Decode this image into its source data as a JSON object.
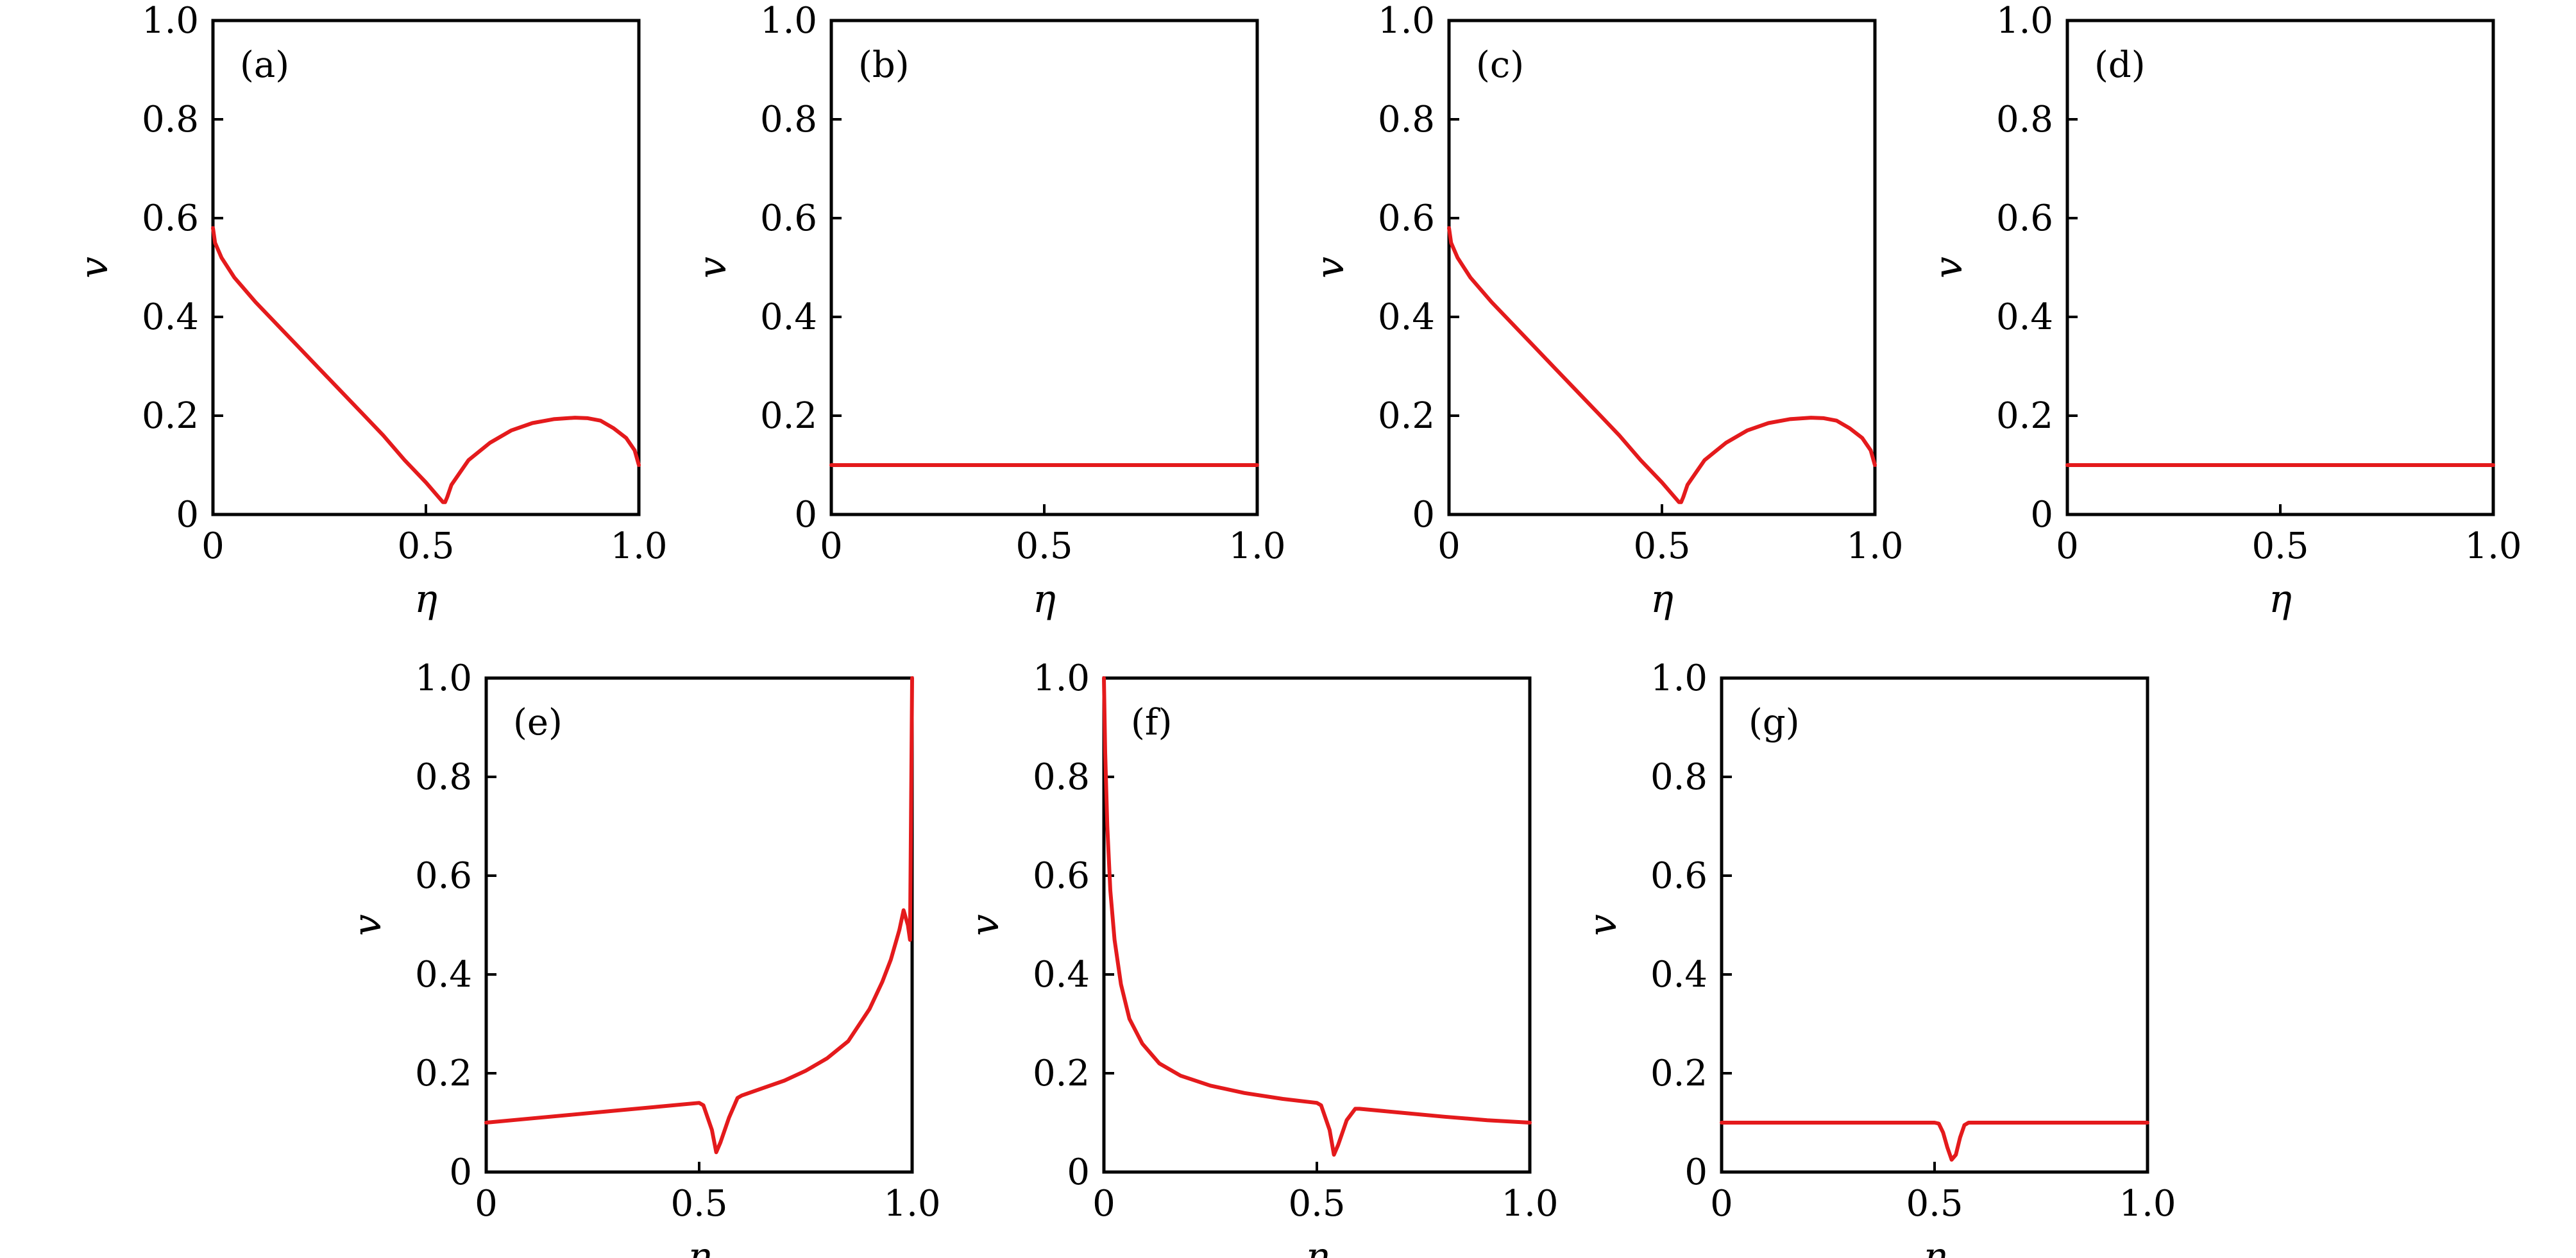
{
  "chart_data": [
    {
      "type": "line",
      "panel_label": "(a)",
      "xlabel": "η",
      "ylabel": "v",
      "xlim": [
        0,
        1
      ],
      "ylim": [
        0,
        1
      ],
      "xticks": [
        "0",
        "0.5",
        "1.0"
      ],
      "yticks": [
        "0",
        "0.2",
        "0.4",
        "0.6",
        "0.8",
        "1.0"
      ],
      "grid": false,
      "series_color": "#e41a1c",
      "series": [
        {
          "x": [
            0,
            0.005,
            0.02,
            0.05,
            0.1,
            0.15,
            0.2,
            0.25,
            0.3,
            0.35,
            0.4,
            0.45,
            0.5,
            0.52,
            0.54,
            0.545,
            0.55,
            0.56,
            0.58,
            0.6,
            0.65,
            0.7,
            0.75,
            0.8,
            0.85,
            0.88,
            0.91,
            0.94,
            0.97,
            0.99,
            1.0
          ],
          "y": [
            0.58,
            0.55,
            0.52,
            0.48,
            0.43,
            0.385,
            0.34,
            0.295,
            0.25,
            0.205,
            0.16,
            0.11,
            0.065,
            0.045,
            0.025,
            0.025,
            0.035,
            0.06,
            0.085,
            0.11,
            0.145,
            0.17,
            0.185,
            0.193,
            0.196,
            0.195,
            0.19,
            0.175,
            0.155,
            0.13,
            0.1
          ]
        }
      ]
    },
    {
      "type": "line",
      "panel_label": "(b)",
      "xlabel": "η",
      "ylabel": "v",
      "xlim": [
        0,
        1
      ],
      "ylim": [
        0,
        1
      ],
      "xticks": [
        "0",
        "0.5",
        "1.0"
      ],
      "yticks": [
        "0",
        "0.2",
        "0.4",
        "0.6",
        "0.8",
        "1.0"
      ],
      "grid": false,
      "series_color": "#e41a1c",
      "series": [
        {
          "x": [
            0,
            1
          ],
          "y": [
            0.1,
            0.1
          ]
        }
      ]
    },
    {
      "type": "line",
      "panel_label": "(c)",
      "xlabel": "η",
      "ylabel": "v",
      "xlim": [
        0,
        1
      ],
      "ylim": [
        0,
        1
      ],
      "xticks": [
        "0",
        "0.5",
        "1.0"
      ],
      "yticks": [
        "0",
        "0.2",
        "0.4",
        "0.6",
        "0.8",
        "1.0"
      ],
      "grid": false,
      "series_color": "#e41a1c",
      "series": [
        {
          "x": [
            0,
            0.005,
            0.02,
            0.05,
            0.1,
            0.15,
            0.2,
            0.25,
            0.3,
            0.35,
            0.4,
            0.45,
            0.5,
            0.52,
            0.54,
            0.545,
            0.55,
            0.56,
            0.58,
            0.6,
            0.65,
            0.7,
            0.75,
            0.8,
            0.85,
            0.88,
            0.91,
            0.94,
            0.97,
            0.99,
            1.0
          ],
          "y": [
            0.58,
            0.55,
            0.52,
            0.48,
            0.43,
            0.385,
            0.34,
            0.295,
            0.25,
            0.205,
            0.16,
            0.11,
            0.065,
            0.045,
            0.025,
            0.025,
            0.035,
            0.06,
            0.085,
            0.11,
            0.145,
            0.17,
            0.185,
            0.193,
            0.196,
            0.195,
            0.19,
            0.175,
            0.155,
            0.13,
            0.1
          ]
        }
      ]
    },
    {
      "type": "line",
      "panel_label": "(d)",
      "xlabel": "η",
      "ylabel": "v",
      "xlim": [
        0,
        1
      ],
      "ylim": [
        0,
        1
      ],
      "xticks": [
        "0",
        "0.5",
        "1.0"
      ],
      "yticks": [
        "0",
        "0.2",
        "0.4",
        "0.6",
        "0.8",
        "1.0"
      ],
      "grid": false,
      "series_color": "#e41a1c",
      "series": [
        {
          "x": [
            0,
            1
          ],
          "y": [
            0.1,
            0.1
          ]
        }
      ]
    },
    {
      "type": "line",
      "panel_label": "(e)",
      "xlabel": "η",
      "ylabel": "v",
      "xlim": [
        0,
        1
      ],
      "ylim": [
        0,
        1
      ],
      "xticks": [
        "0",
        "0.5",
        "1.0"
      ],
      "yticks": [
        "0",
        "0.2",
        "0.4",
        "0.6",
        "0.8",
        "1.0"
      ],
      "grid": false,
      "series_color": "#e41a1c",
      "series": [
        {
          "x": [
            0,
            0.1,
            0.2,
            0.3,
            0.4,
            0.5,
            0.51,
            0.53,
            0.54,
            0.55,
            0.57,
            0.59,
            0.6,
            0.65,
            0.7,
            0.75,
            0.8,
            0.85,
            0.9,
            0.93,
            0.95,
            0.97,
            0.98,
            0.99,
            0.995,
            1.0
          ],
          "y": [
            0.1,
            0.108,
            0.116,
            0.124,
            0.132,
            0.14,
            0.135,
            0.085,
            0.04,
            0.06,
            0.11,
            0.15,
            0.155,
            0.17,
            0.185,
            0.205,
            0.23,
            0.265,
            0.33,
            0.385,
            0.43,
            0.49,
            0.53,
            0.5,
            0.47,
            1.0
          ]
        }
      ]
    },
    {
      "type": "line",
      "panel_label": "(f)",
      "xlabel": "η",
      "ylabel": "v",
      "xlim": [
        0,
        1
      ],
      "ylim": [
        0,
        1
      ],
      "xticks": [
        "0",
        "0.5",
        "1.0"
      ],
      "yticks": [
        "0",
        "0.2",
        "0.4",
        "0.6",
        "0.8",
        "1.0"
      ],
      "grid": false,
      "series_color": "#e41a1c",
      "series": [
        {
          "x": [
            0,
            0.003,
            0.008,
            0.015,
            0.025,
            0.04,
            0.06,
            0.09,
            0.13,
            0.18,
            0.25,
            0.33,
            0.42,
            0.5,
            0.51,
            0.53,
            0.54,
            0.55,
            0.57,
            0.59,
            0.6,
            0.7,
            0.8,
            0.9,
            1.0
          ],
          "y": [
            1.0,
            0.85,
            0.7,
            0.57,
            0.47,
            0.38,
            0.31,
            0.26,
            0.22,
            0.195,
            0.175,
            0.16,
            0.148,
            0.14,
            0.135,
            0.085,
            0.035,
            0.055,
            0.105,
            0.128,
            0.128,
            0.12,
            0.112,
            0.105,
            0.1
          ]
        }
      ]
    },
    {
      "type": "line",
      "panel_label": "(g)",
      "xlabel": "η",
      "ylabel": "v",
      "xlim": [
        0,
        1
      ],
      "ylim": [
        0,
        1
      ],
      "xticks": [
        "0",
        "0.5",
        "1.0"
      ],
      "yticks": [
        "0",
        "0.2",
        "0.4",
        "0.6",
        "0.8",
        "1.0"
      ],
      "grid": false,
      "series_color": "#e41a1c",
      "series": [
        {
          "x": [
            0,
            0.5,
            0.51,
            0.52,
            0.53,
            0.54,
            0.55,
            0.56,
            0.57,
            0.58,
            0.6,
            1.0
          ],
          "y": [
            0.1,
            0.1,
            0.098,
            0.08,
            0.05,
            0.025,
            0.035,
            0.07,
            0.095,
            0.1,
            0.1,
            0.1
          ]
        }
      ]
    }
  ]
}
